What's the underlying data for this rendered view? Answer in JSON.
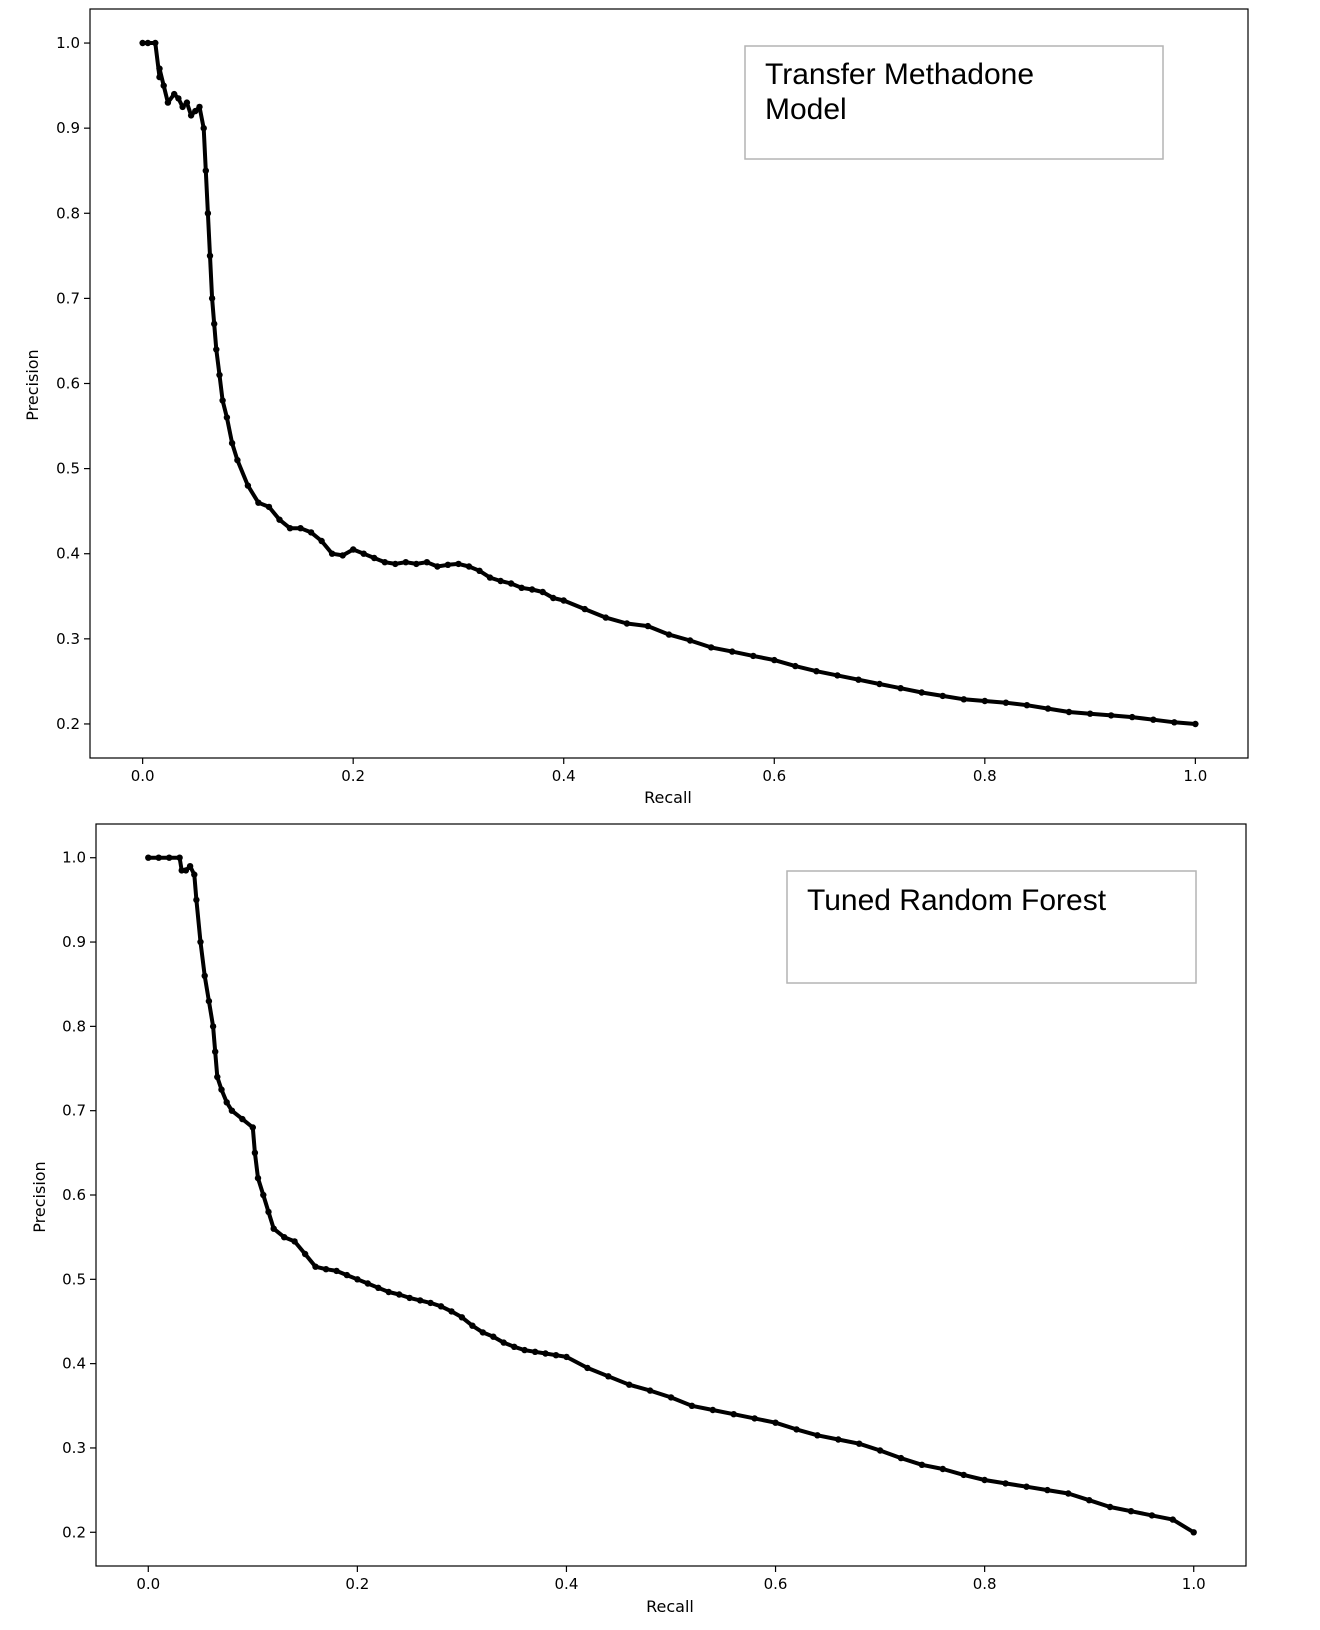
{
  "chart_data": [
    {
      "type": "line",
      "xlabel": "Recall",
      "ylabel": "Precision",
      "xlim": [
        -0.05,
        1.05
      ],
      "ylim": [
        0.16,
        1.04
      ],
      "x_ticks": [
        "0.0",
        "0.2",
        "0.4",
        "0.6",
        "0.8",
        "1.0"
      ],
      "y_ticks": [
        "0.2",
        "0.3",
        "0.4",
        "0.5",
        "0.6",
        "0.7",
        "0.8",
        "0.9",
        "1.0"
      ],
      "legend_lines": [
        "Transfer Methadone",
        "Model"
      ],
      "legend_placement": "top-right",
      "grid": false,
      "marker": "dot",
      "color": "#000000",
      "series": [
        {
          "x": [
            0.0,
            0.005,
            0.012,
            0.016,
            0.016,
            0.02,
            0.024,
            0.03,
            0.034,
            0.038,
            0.042,
            0.046,
            0.05,
            0.054,
            0.058,
            0.06,
            0.062,
            0.064,
            0.066,
            0.068,
            0.07,
            0.073,
            0.076,
            0.08,
            0.085,
            0.09,
            0.1,
            0.11,
            0.12,
            0.13,
            0.14,
            0.15,
            0.16,
            0.17,
            0.18,
            0.19,
            0.2,
            0.21,
            0.22,
            0.23,
            0.24,
            0.25,
            0.26,
            0.27,
            0.28,
            0.29,
            0.3,
            0.31,
            0.32,
            0.33,
            0.34,
            0.35,
            0.36,
            0.37,
            0.38,
            0.39,
            0.4,
            0.42,
            0.44,
            0.46,
            0.48,
            0.5,
            0.52,
            0.54,
            0.56,
            0.58,
            0.6,
            0.62,
            0.64,
            0.66,
            0.68,
            0.7,
            0.72,
            0.74,
            0.76,
            0.78,
            0.8,
            0.82,
            0.84,
            0.86,
            0.88,
            0.9,
            0.92,
            0.94,
            0.96,
            0.98,
            1.0
          ],
          "y": [
            1.0,
            1.0,
            1.0,
            0.96,
            0.97,
            0.95,
            0.93,
            0.94,
            0.935,
            0.925,
            0.93,
            0.915,
            0.92,
            0.925,
            0.9,
            0.85,
            0.8,
            0.75,
            0.7,
            0.67,
            0.64,
            0.61,
            0.58,
            0.56,
            0.53,
            0.51,
            0.48,
            0.46,
            0.455,
            0.44,
            0.43,
            0.43,
            0.425,
            0.415,
            0.4,
            0.398,
            0.405,
            0.4,
            0.395,
            0.39,
            0.388,
            0.39,
            0.388,
            0.39,
            0.385,
            0.387,
            0.388,
            0.385,
            0.38,
            0.372,
            0.368,
            0.365,
            0.36,
            0.358,
            0.355,
            0.348,
            0.345,
            0.335,
            0.325,
            0.318,
            0.315,
            0.305,
            0.298,
            0.29,
            0.285,
            0.28,
            0.275,
            0.268,
            0.262,
            0.257,
            0.252,
            0.247,
            0.242,
            0.237,
            0.233,
            0.229,
            0.227,
            0.225,
            0.222,
            0.218,
            0.214,
            0.212,
            0.21,
            0.208,
            0.205,
            0.202,
            0.2
          ]
        }
      ]
    },
    {
      "type": "line",
      "xlabel": "Recall",
      "ylabel": "Precision",
      "xlim": [
        -0.05,
        1.05
      ],
      "ylim": [
        0.16,
        1.04
      ],
      "x_ticks": [
        "0.0",
        "0.2",
        "0.4",
        "0.6",
        "0.8",
        "1.0"
      ],
      "y_ticks": [
        "0.2",
        "0.3",
        "0.4",
        "0.5",
        "0.6",
        "0.7",
        "0.8",
        "0.9",
        "1.0"
      ],
      "legend_lines": [
        "Tuned Random Forest"
      ],
      "legend_placement": "top-right",
      "grid": false,
      "marker": "dot",
      "color": "#000000",
      "series": [
        {
          "x": [
            0.0,
            0.01,
            0.02,
            0.03,
            0.032,
            0.036,
            0.04,
            0.044,
            0.046,
            0.05,
            0.054,
            0.058,
            0.062,
            0.064,
            0.066,
            0.07,
            0.075,
            0.08,
            0.09,
            0.1,
            0.102,
            0.105,
            0.11,
            0.115,
            0.12,
            0.13,
            0.14,
            0.15,
            0.16,
            0.17,
            0.18,
            0.19,
            0.2,
            0.21,
            0.22,
            0.23,
            0.24,
            0.25,
            0.26,
            0.27,
            0.28,
            0.29,
            0.3,
            0.31,
            0.32,
            0.33,
            0.34,
            0.35,
            0.36,
            0.37,
            0.38,
            0.39,
            0.4,
            0.42,
            0.44,
            0.46,
            0.48,
            0.5,
            0.52,
            0.54,
            0.56,
            0.58,
            0.6,
            0.62,
            0.64,
            0.66,
            0.68,
            0.7,
            0.72,
            0.74,
            0.76,
            0.78,
            0.8,
            0.82,
            0.84,
            0.86,
            0.88,
            0.9,
            0.92,
            0.94,
            0.96,
            0.98,
            1.0
          ],
          "y": [
            1.0,
            1.0,
            1.0,
            1.0,
            0.985,
            0.985,
            0.99,
            0.98,
            0.95,
            0.9,
            0.86,
            0.83,
            0.8,
            0.77,
            0.74,
            0.725,
            0.71,
            0.7,
            0.69,
            0.68,
            0.65,
            0.62,
            0.6,
            0.58,
            0.56,
            0.55,
            0.545,
            0.53,
            0.515,
            0.512,
            0.51,
            0.505,
            0.5,
            0.495,
            0.49,
            0.485,
            0.482,
            0.478,
            0.475,
            0.472,
            0.468,
            0.462,
            0.455,
            0.445,
            0.437,
            0.432,
            0.425,
            0.42,
            0.416,
            0.414,
            0.412,
            0.41,
            0.408,
            0.395,
            0.385,
            0.375,
            0.368,
            0.36,
            0.35,
            0.345,
            0.34,
            0.335,
            0.33,
            0.322,
            0.315,
            0.31,
            0.305,
            0.297,
            0.288,
            0.28,
            0.275,
            0.268,
            0.262,
            0.258,
            0.254,
            0.25,
            0.246,
            0.238,
            0.23,
            0.225,
            0.22,
            0.215,
            0.2
          ]
        }
      ]
    }
  ]
}
